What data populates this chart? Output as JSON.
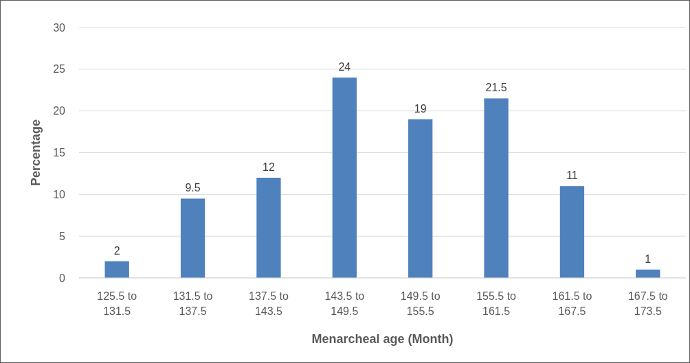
{
  "chart_data": {
    "type": "bar",
    "xlabel": "Menarcheal age (Month)",
    "ylabel": "Percentage",
    "categories": [
      "125.5 to 131.5",
      "131.5 to 137.5",
      "137.5 to 143.5",
      "143.5 to 149.5",
      "149.5 to 155.5",
      "155.5 to 161.5",
      "161.5 to 167.5",
      "167.5 to 173.5"
    ],
    "values": [
      2,
      9.5,
      12,
      24,
      19,
      21.5,
      11,
      1
    ],
    "color": "#4f81bd",
    "ylim": [
      0,
      30
    ],
    "yticks": [
      0,
      5,
      10,
      15,
      20,
      25,
      30
    ],
    "grid": "y",
    "data_labels": true
  }
}
